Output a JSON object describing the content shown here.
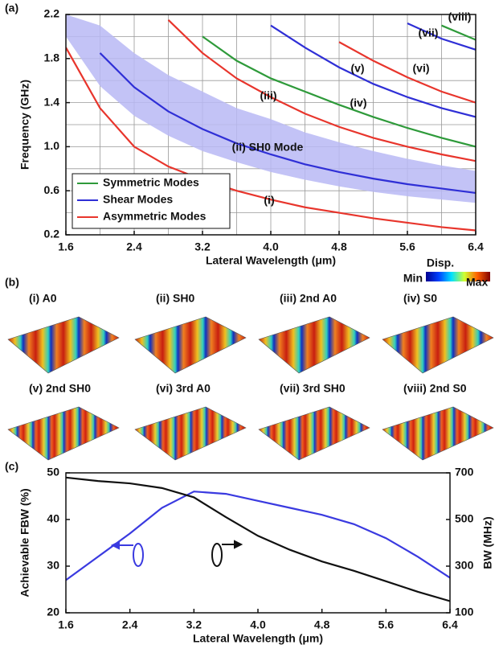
{
  "chart_data": [
    {
      "type": "line",
      "panel_label": "(a)",
      "x_label": "Lateral Wavelength (μm)",
      "y_label": "Frequency (GHz)",
      "grid": true,
      "legend_position": "lower left",
      "x": [
        1.6,
        2.0,
        2.4,
        2.8,
        3.2,
        3.6,
        4.0,
        4.4,
        4.8,
        5.2,
        5.6,
        6.0,
        6.4
      ],
      "xlim": [
        1.6,
        6.4
      ],
      "xticks": [
        1.6,
        2.4,
        3.2,
        {
          "value": 4,
          "label": "4.0"
        },
        4.8,
        5.6,
        6.4
      ],
      "ylim": [
        0.2,
        2.2
      ],
      "yticks": [
        0.2,
        0.6,
        {
          "value": 1,
          "label": "1.0"
        },
        1.4,
        1.8,
        2.2
      ],
      "band": {
        "color": "#b8b8f4",
        "upper": [
          2.2,
          2.1,
          1.85,
          1.65,
          1.5,
          1.35,
          1.25,
          1.13,
          1.04,
          0.96,
          0.89,
          0.83,
          0.78
        ],
        "lower": [
          2.0,
          1.55,
          1.28,
          1.1,
          0.96,
          0.86,
          0.77,
          0.7,
          0.64,
          0.59,
          0.55,
          0.52,
          0.49
        ]
      },
      "series": [
        {
          "name": "Symmetric Modes",
          "color": "#2e9a3a",
          "curves": [
            [
              null,
              null,
              null,
              null,
              2.0,
              1.78,
              1.62,
              1.5,
              1.38,
              1.27,
              1.17,
              1.08,
              1.0
            ],
            [
              null,
              null,
              null,
              null,
              null,
              null,
              null,
              null,
              null,
              null,
              null,
              2.1,
              1.97
            ]
          ]
        },
        {
          "name": "Shear Modes",
          "color": "#2f2fd6",
          "curves": [
            [
              null,
              1.85,
              1.54,
              1.32,
              1.16,
              1.03,
              0.93,
              0.84,
              0.77,
              0.71,
              0.66,
              0.62,
              0.58
            ],
            [
              null,
              null,
              null,
              null,
              null,
              null,
              2.1,
              1.9,
              1.72,
              1.57,
              1.45,
              1.35,
              1.27
            ],
            [
              null,
              null,
              null,
              null,
              null,
              null,
              null,
              null,
              null,
              null,
              2.12,
              1.98,
              1.88
            ]
          ]
        },
        {
          "name": "Asymmetric Modes",
          "color": "#e8352c",
          "curves": [
            [
              1.9,
              1.35,
              1.0,
              0.82,
              0.7,
              0.6,
              0.52,
              0.45,
              0.4,
              0.35,
              0.31,
              0.27,
              0.24
            ],
            [
              null,
              null,
              null,
              2.15,
              1.85,
              1.62,
              1.45,
              1.3,
              1.18,
              1.08,
              1.0,
              0.93,
              0.87
            ],
            [
              null,
              null,
              null,
              null,
              null,
              null,
              null,
              null,
              1.95,
              1.78,
              1.63,
              1.5,
              1.4
            ]
          ]
        }
      ],
      "annotations": [
        "(i)",
        "(ii) SH0 Mode",
        "(iii)",
        "(iv)",
        "(v)",
        "(vi)",
        "(vii)",
        "(viii)"
      ]
    },
    {
      "type": "line",
      "panel_label": "(c)",
      "x_label": "Lateral Wavelength (μm)",
      "y_label": "Achievable FBW (%)",
      "y2_label": "BW (MHz)",
      "x": [
        1.6,
        2.0,
        2.4,
        2.8,
        3.2,
        3.6,
        4.0,
        4.4,
        4.8,
        5.2,
        5.6,
        6.0,
        6.4
      ],
      "xlim": [
        1.6,
        6.4
      ],
      "xticks": [
        1.6,
        2.4,
        3.2,
        {
          "value": 4,
          "label": "4.0"
        },
        4.8,
        5.6,
        6.4
      ],
      "ylim": [
        20,
        50
      ],
      "yticks": [
        20,
        30,
        40,
        50
      ],
      "y2lim": [
        100,
        700
      ],
      "y2ticks": [
        100,
        300,
        500,
        700
      ],
      "series": [
        {
          "color": "#3a3ae0",
          "values": [
            27,
            32,
            37,
            42.5,
            46,
            45.5,
            44,
            42.5,
            41,
            39,
            36,
            32,
            27.5
          ]
        },
        {
          "color": "#111111",
          "axis": "y2",
          "values": [
            680,
            665,
            655,
            635,
            595,
            510,
            430,
            370,
            320,
            280,
            235,
            190,
            150
          ]
        }
      ]
    }
  ],
  "mode_shapes": {
    "panel_label": "(b)",
    "colorbar_title": "Disp.",
    "min_label": "Min",
    "max_label": "Max",
    "labels": [
      "(i) A0",
      "(ii) SH0",
      "(iii) 2nd A0",
      "(iv) S0",
      "(v) 2nd SH0",
      "(vi) 3rd A0",
      "(vii) 3rd SH0",
      "(viii) 2nd S0"
    ]
  }
}
